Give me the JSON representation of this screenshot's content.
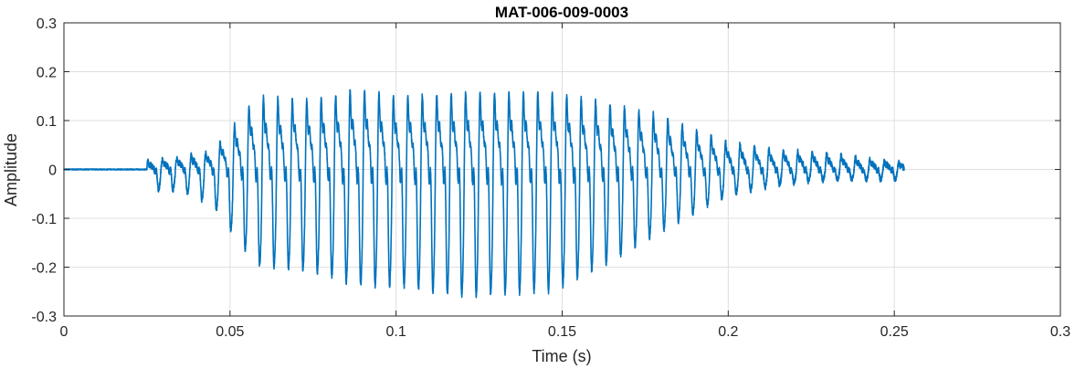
{
  "chart_data": {
    "type": "line",
    "title": "MAT-006-009-0003",
    "xlabel": "Time (s)",
    "ylabel": "Amplitude",
    "xlim": [
      0,
      0.3
    ],
    "ylim": [
      -0.3,
      0.3
    ],
    "xticks": [
      0,
      0.05,
      0.1,
      0.15,
      0.2,
      0.25,
      0.3
    ],
    "xtick_labels": [
      "0",
      "0.05",
      "0.1",
      "0.15",
      "0.2",
      "0.25",
      "0.3"
    ],
    "yticks": [
      -0.3,
      -0.2,
      -0.1,
      0,
      0.1,
      0.2,
      0.3
    ],
    "ytick_labels": [
      "-0.3",
      "-0.2",
      "-0.1",
      "0",
      "0.1",
      "0.2",
      "0.3"
    ],
    "grid": true,
    "line_color": "#0072BD",
    "signal": {
      "silence_until": 0.025,
      "end_time": 0.253,
      "envelope_time": [
        0.025,
        0.035,
        0.045,
        0.05,
        0.058,
        0.075,
        0.088,
        0.1,
        0.12,
        0.147,
        0.165,
        0.18,
        0.2,
        0.215,
        0.23,
        0.253
      ],
      "envelope_pos": [
        0.02,
        0.03,
        0.05,
        0.1,
        0.19,
        0.18,
        0.21,
        0.19,
        0.2,
        0.2,
        0.17,
        0.14,
        0.07,
        0.05,
        0.04,
        0.015
      ],
      "envelope_neg": [
        0.04,
        0.04,
        0.07,
        0.12,
        0.19,
        0.2,
        0.23,
        0.23,
        0.25,
        0.24,
        0.18,
        0.12,
        0.05,
        0.03,
        0.02,
        0.02
      ],
      "fundamental_hz": 230
    }
  }
}
